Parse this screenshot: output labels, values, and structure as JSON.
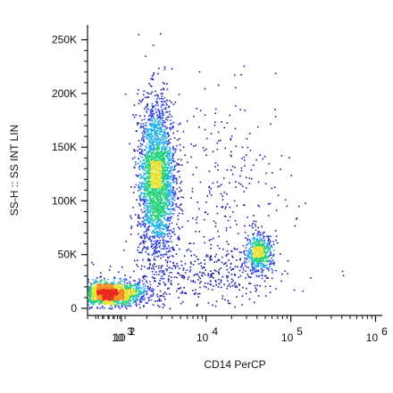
{
  "chart_data": {
    "type": "scatter",
    "plot_style": "flow cytometry density dot plot",
    "xlabel": "CD14 PerCP",
    "ylabel": "SS-H :: SS INT LIN",
    "x_scale": "log",
    "xlim": [
      400,
      1200000
    ],
    "x_ticks": [
      {
        "value": 100,
        "base": "10",
        "exp": "2"
      },
      {
        "value": 1000,
        "base": "10",
        "exp": "3"
      },
      {
        "value": 10000,
        "base": "10",
        "exp": "4"
      },
      {
        "value": 100000,
        "base": "10",
        "exp": "5"
      },
      {
        "value": 1000000,
        "base": "10",
        "exp": "6"
      }
    ],
    "y_scale": "linear",
    "ylim": [
      -5000,
      262144
    ],
    "y_ticks": [
      {
        "value": 0,
        "label": "0"
      },
      {
        "value": 50000,
        "label": "50K"
      },
      {
        "value": 100000,
        "label": "100K"
      },
      {
        "value": 150000,
        "label": "150K"
      },
      {
        "value": 200000,
        "label": "200K"
      },
      {
        "value": 250000,
        "label": "250K"
      }
    ],
    "color_scale": [
      "#1a1aa8",
      "#2b3fe0",
      "#1fb0e8",
      "#22d27a",
      "#e8e02a",
      "#f58a1f",
      "#e82a1a"
    ],
    "populations": [
      {
        "name": "",
        "center_x": 700,
        "center_y": 14000,
        "sd_log_x": 0.22,
        "sd_y": 6000,
        "weight": 0.3
      },
      {
        "name": "",
        "center_x": 2600,
        "center_y": 120000,
        "sd_log_x": 0.11,
        "sd_y": 38000,
        "weight": 0.48
      },
      {
        "name": "",
        "center_x": 42000,
        "center_y": 52000,
        "sd_log_x": 0.08,
        "sd_y": 9000,
        "weight": 0.1
      },
      {
        "name": "",
        "center_x": 10000,
        "center_y": 30000,
        "sd_log_x": 0.45,
        "sd_y": 15000,
        "weight": 0.07
      },
      {
        "name": "",
        "center_x": 20000,
        "center_y": 110000,
        "sd_log_x": 0.35,
        "sd_y": 45000,
        "weight": 0.05
      }
    ],
    "grid": false,
    "legend": "none"
  }
}
